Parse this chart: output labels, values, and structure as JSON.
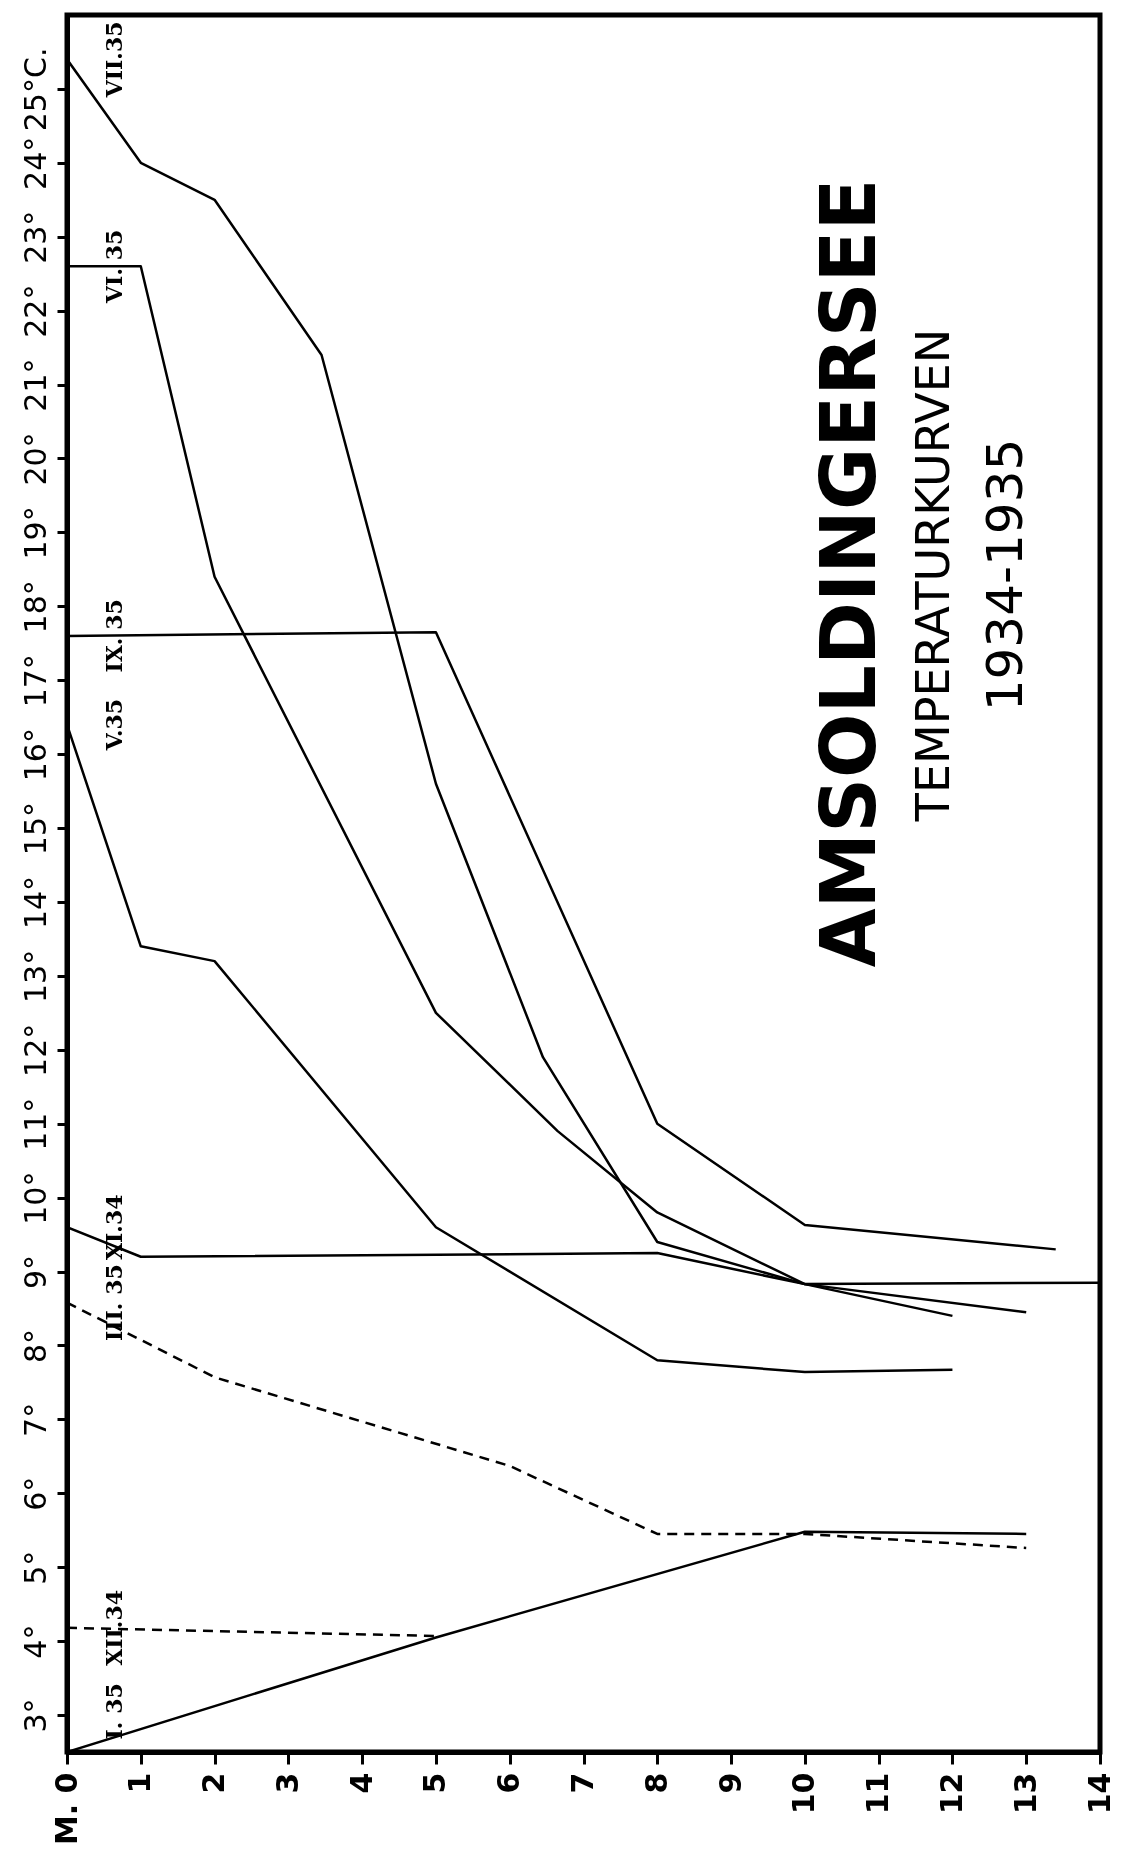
{
  "chart_data": {
    "type": "line",
    "title": "AMSOLDINGERSEE",
    "subtitle": "TEMPERATURKURVEN",
    "annotations": [
      "1934-1935"
    ],
    "xlim": [
      0,
      14
    ],
    "xticks": [
      {
        "value": 0,
        "label": "M. 0"
      },
      1,
      2,
      3,
      4,
      5,
      6,
      7,
      8,
      9,
      10,
      11,
      12,
      13,
      14
    ],
    "ylim": [
      2.5,
      26
    ],
    "yticks": [
      {
        "value": 3,
        "label": "3°"
      },
      {
        "value": 4,
        "label": "4°"
      },
      {
        "value": 5,
        "label": "5°"
      },
      {
        "value": 6,
        "label": "6°"
      },
      {
        "value": 7,
        "label": "7°"
      },
      {
        "value": 8,
        "label": "8°"
      },
      {
        "value": 9,
        "label": "9°"
      },
      {
        "value": 10,
        "label": "10°"
      },
      {
        "value": 11,
        "label": "11°"
      },
      {
        "value": 12,
        "label": "12°"
      },
      {
        "value": 13,
        "label": "13°"
      },
      {
        "value": 14,
        "label": "14°"
      },
      {
        "value": 15,
        "label": "15°"
      },
      {
        "value": 16,
        "label": "16°"
      },
      {
        "value": 17,
        "label": "17°"
      },
      {
        "value": 18,
        "label": "18°"
      },
      {
        "value": 19,
        "label": "19°"
      },
      {
        "value": 20,
        "label": "20°"
      },
      {
        "value": 21,
        "label": "21°"
      },
      {
        "value": 22,
        "label": "22°"
      },
      {
        "value": 23,
        "label": "23°"
      },
      {
        "value": 24,
        "label": "24°"
      },
      {
        "value": 25,
        "label": "25°C."
      }
    ],
    "grid": false,
    "marker": "none",
    "series": [
      {
        "name": "VII.35",
        "color": "#000000",
        "line_style": "solid",
        "x": [
          0,
          1,
          2,
          3.45,
          5,
          6.45,
          8,
          10,
          12
        ],
        "values": [
          25.4,
          24.0,
          23.5,
          21.4,
          15.6,
          11.9,
          9.4,
          8.83,
          8.4
        ]
      },
      {
        "name": "VI. 35",
        "color": "#000000",
        "line_style": "solid",
        "x": [
          0,
          1,
          2,
          5,
          6.65,
          8,
          10,
          13
        ],
        "values": [
          22.6,
          22.6,
          18.4,
          12.5,
          10.9,
          9.8,
          8.83,
          8.45
        ]
      },
      {
        "name": "IX. 35",
        "color": "#000000",
        "line_style": "solid",
        "x": [
          0,
          5,
          8,
          10,
          13.4
        ],
        "values": [
          17.6,
          17.65,
          11.0,
          9.63,
          9.3
        ]
      },
      {
        "name": "V.35",
        "color": "#000000",
        "line_style": "solid",
        "x": [
          0,
          1,
          2,
          5,
          8,
          10,
          12
        ],
        "values": [
          16.4,
          13.4,
          13.2,
          9.6,
          7.8,
          7.64,
          7.67
        ]
      },
      {
        "name": "XI.34",
        "color": "#000000",
        "line_style": "solid",
        "x": [
          0,
          1,
          8,
          10,
          14
        ],
        "values": [
          9.6,
          9.2,
          9.25,
          8.83,
          8.85
        ]
      },
      {
        "name": "III. 35",
        "color": "#000000",
        "line_style": "dashed",
        "x": [
          0,
          2,
          6,
          8,
          10,
          13
        ],
        "values": [
          8.58,
          7.57,
          6.37,
          5.45,
          5.45,
          5.26
        ]
      },
      {
        "name": "XII.34",
        "color": "#000000",
        "line_style": "dashed",
        "x": [
          0,
          5
        ],
        "values": [
          4.18,
          4.07
        ]
      },
      {
        "name": "I. 35",
        "color": "#000000",
        "line_style": "solid",
        "x": [
          0,
          5,
          10,
          13
        ],
        "values": [
          2.5,
          4.05,
          5.48,
          5.45
        ]
      }
    ]
  }
}
